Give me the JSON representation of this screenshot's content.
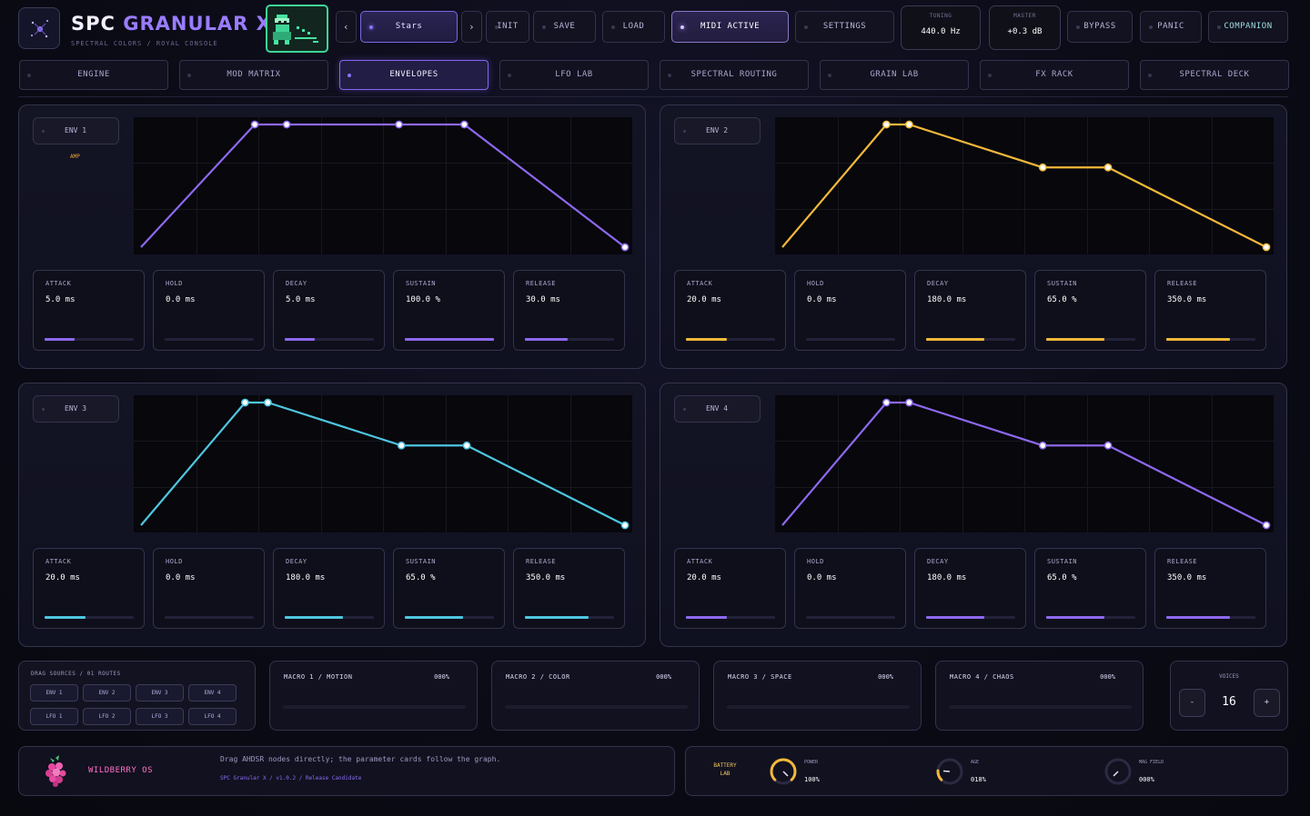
{
  "app": {
    "title_main": "SPC",
    "title_accent": "GRANULAR",
    "title_suffix": "X",
    "subtitle": "SPECTRAL COLORS / ROYAL CONSOLE"
  },
  "toolbar": {
    "prev": "‹",
    "preset": "Stars",
    "next": "›",
    "init": "INIT",
    "save": "SAVE",
    "load": "LOAD",
    "midi": "MIDI ACTIVE",
    "settings": "SETTINGS",
    "bypass": "BYPASS",
    "panic": "PANIC",
    "companion": "COMPANION"
  },
  "readouts": {
    "tuning_label": "TUNING",
    "tuning_value": "440.0 Hz",
    "master_label": "MASTER",
    "master_value": "+0.3 dB"
  },
  "tabs": [
    "ENGINE",
    "MOD MATRIX",
    "ENVELOPES",
    "LFO LAB",
    "SPECTRAL ROUTING",
    "GRAIN LAB",
    "FX RACK",
    "SPECTRAL DECK"
  ],
  "active_tab": "ENVELOPES",
  "colors": {
    "purple": "#8e68ee",
    "amber": "#f3b83a",
    "cyan": "#4fc6e0",
    "background": "#0b0b16",
    "panel_border": "#34334c",
    "accent_pink": "#ff6ec7"
  },
  "param_labels": [
    "ATTACK",
    "HOLD",
    "DECAY",
    "SUSTAIN",
    "RELEASE"
  ],
  "envelopes": [
    {
      "name": "ENV 1",
      "tag": "AMP",
      "color": "#8e68ee",
      "values": [
        "5.0 ms",
        "0.0 ms",
        "5.0 ms",
        "100.0 %",
        "30.0 ms"
      ],
      "levels": [
        0.34,
        0.0,
        0.34,
        1.0,
        0.48
      ],
      "attack_ms": 5.0,
      "hold_ms": 0.0,
      "decay_ms": 5.0,
      "sustain": 1.0,
      "release_ms": 30.0
    },
    {
      "name": "ENV 2",
      "tag": "",
      "color": "#f3b83a",
      "values": [
        "20.0 ms",
        "0.0 ms",
        "180.0 ms",
        "65.0 %",
        "350.0 ms"
      ],
      "levels": [
        0.46,
        0.0,
        0.65,
        0.65,
        0.71
      ],
      "attack_ms": 20.0,
      "hold_ms": 0.0,
      "decay_ms": 180.0,
      "sustain": 0.65,
      "release_ms": 350.0
    },
    {
      "name": "ENV 3",
      "tag": "",
      "color": "#4fc6e0",
      "values": [
        "20.0 ms",
        "0.0 ms",
        "180.0 ms",
        "65.0 %",
        "350.0 ms"
      ],
      "levels": [
        0.46,
        0.0,
        0.65,
        0.65,
        0.71
      ],
      "attack_ms": 20.0,
      "hold_ms": 0.0,
      "decay_ms": 180.0,
      "sustain": 0.65,
      "release_ms": 350.0
    },
    {
      "name": "ENV 4",
      "tag": "",
      "color": "#8e68ee",
      "values": [
        "20.0 ms",
        "0.0 ms",
        "180.0 ms",
        "65.0 %",
        "350.0 ms"
      ],
      "levels": [
        0.46,
        0.0,
        0.65,
        0.65,
        0.71
      ],
      "attack_ms": 20.0,
      "hold_ms": 0.0,
      "decay_ms": 180.0,
      "sustain": 0.65,
      "release_ms": 350.0
    }
  ],
  "drag_sources": {
    "title": "DRAG SOURCES / 01 ROUTES",
    "chips": [
      "ENV 1",
      "ENV 2",
      "ENV 3",
      "ENV 4",
      "LFO 1",
      "LFO 2",
      "LFO 3",
      "LFO 4"
    ]
  },
  "macros": [
    {
      "label": "MACRO 1 / MOTION",
      "value": "000%",
      "level": 0.0
    },
    {
      "label": "MACRO 2 / COLOR",
      "value": "000%",
      "level": 0.0
    },
    {
      "label": "MACRO 3 / SPACE",
      "value": "000%",
      "level": 0.0
    },
    {
      "label": "MACRO 4 / CHAOS",
      "value": "000%",
      "level": 0.0
    }
  ],
  "voices": {
    "label": "VOICES",
    "value": "16",
    "minus": "-",
    "plus": "+"
  },
  "footer": {
    "brand": "WILDBERRY OS",
    "hint": "Drag AHDSR nodes directly; the parameter cards follow the graph.",
    "version": "SPC Granular X / v1.0.2 / Release Candidate"
  },
  "battery": {
    "title": "BATTERY LAB",
    "gauges": [
      {
        "label": "POWER",
        "value": "100%",
        "level": 1.0,
        "color": "#f3b83a"
      },
      {
        "label": "AGE",
        "value": "018%",
        "level": 0.18,
        "color": "#f3b83a"
      },
      {
        "label": "MAG FIELD",
        "value": "000%",
        "level": 0.0,
        "color": "#5d5c78"
      }
    ]
  }
}
